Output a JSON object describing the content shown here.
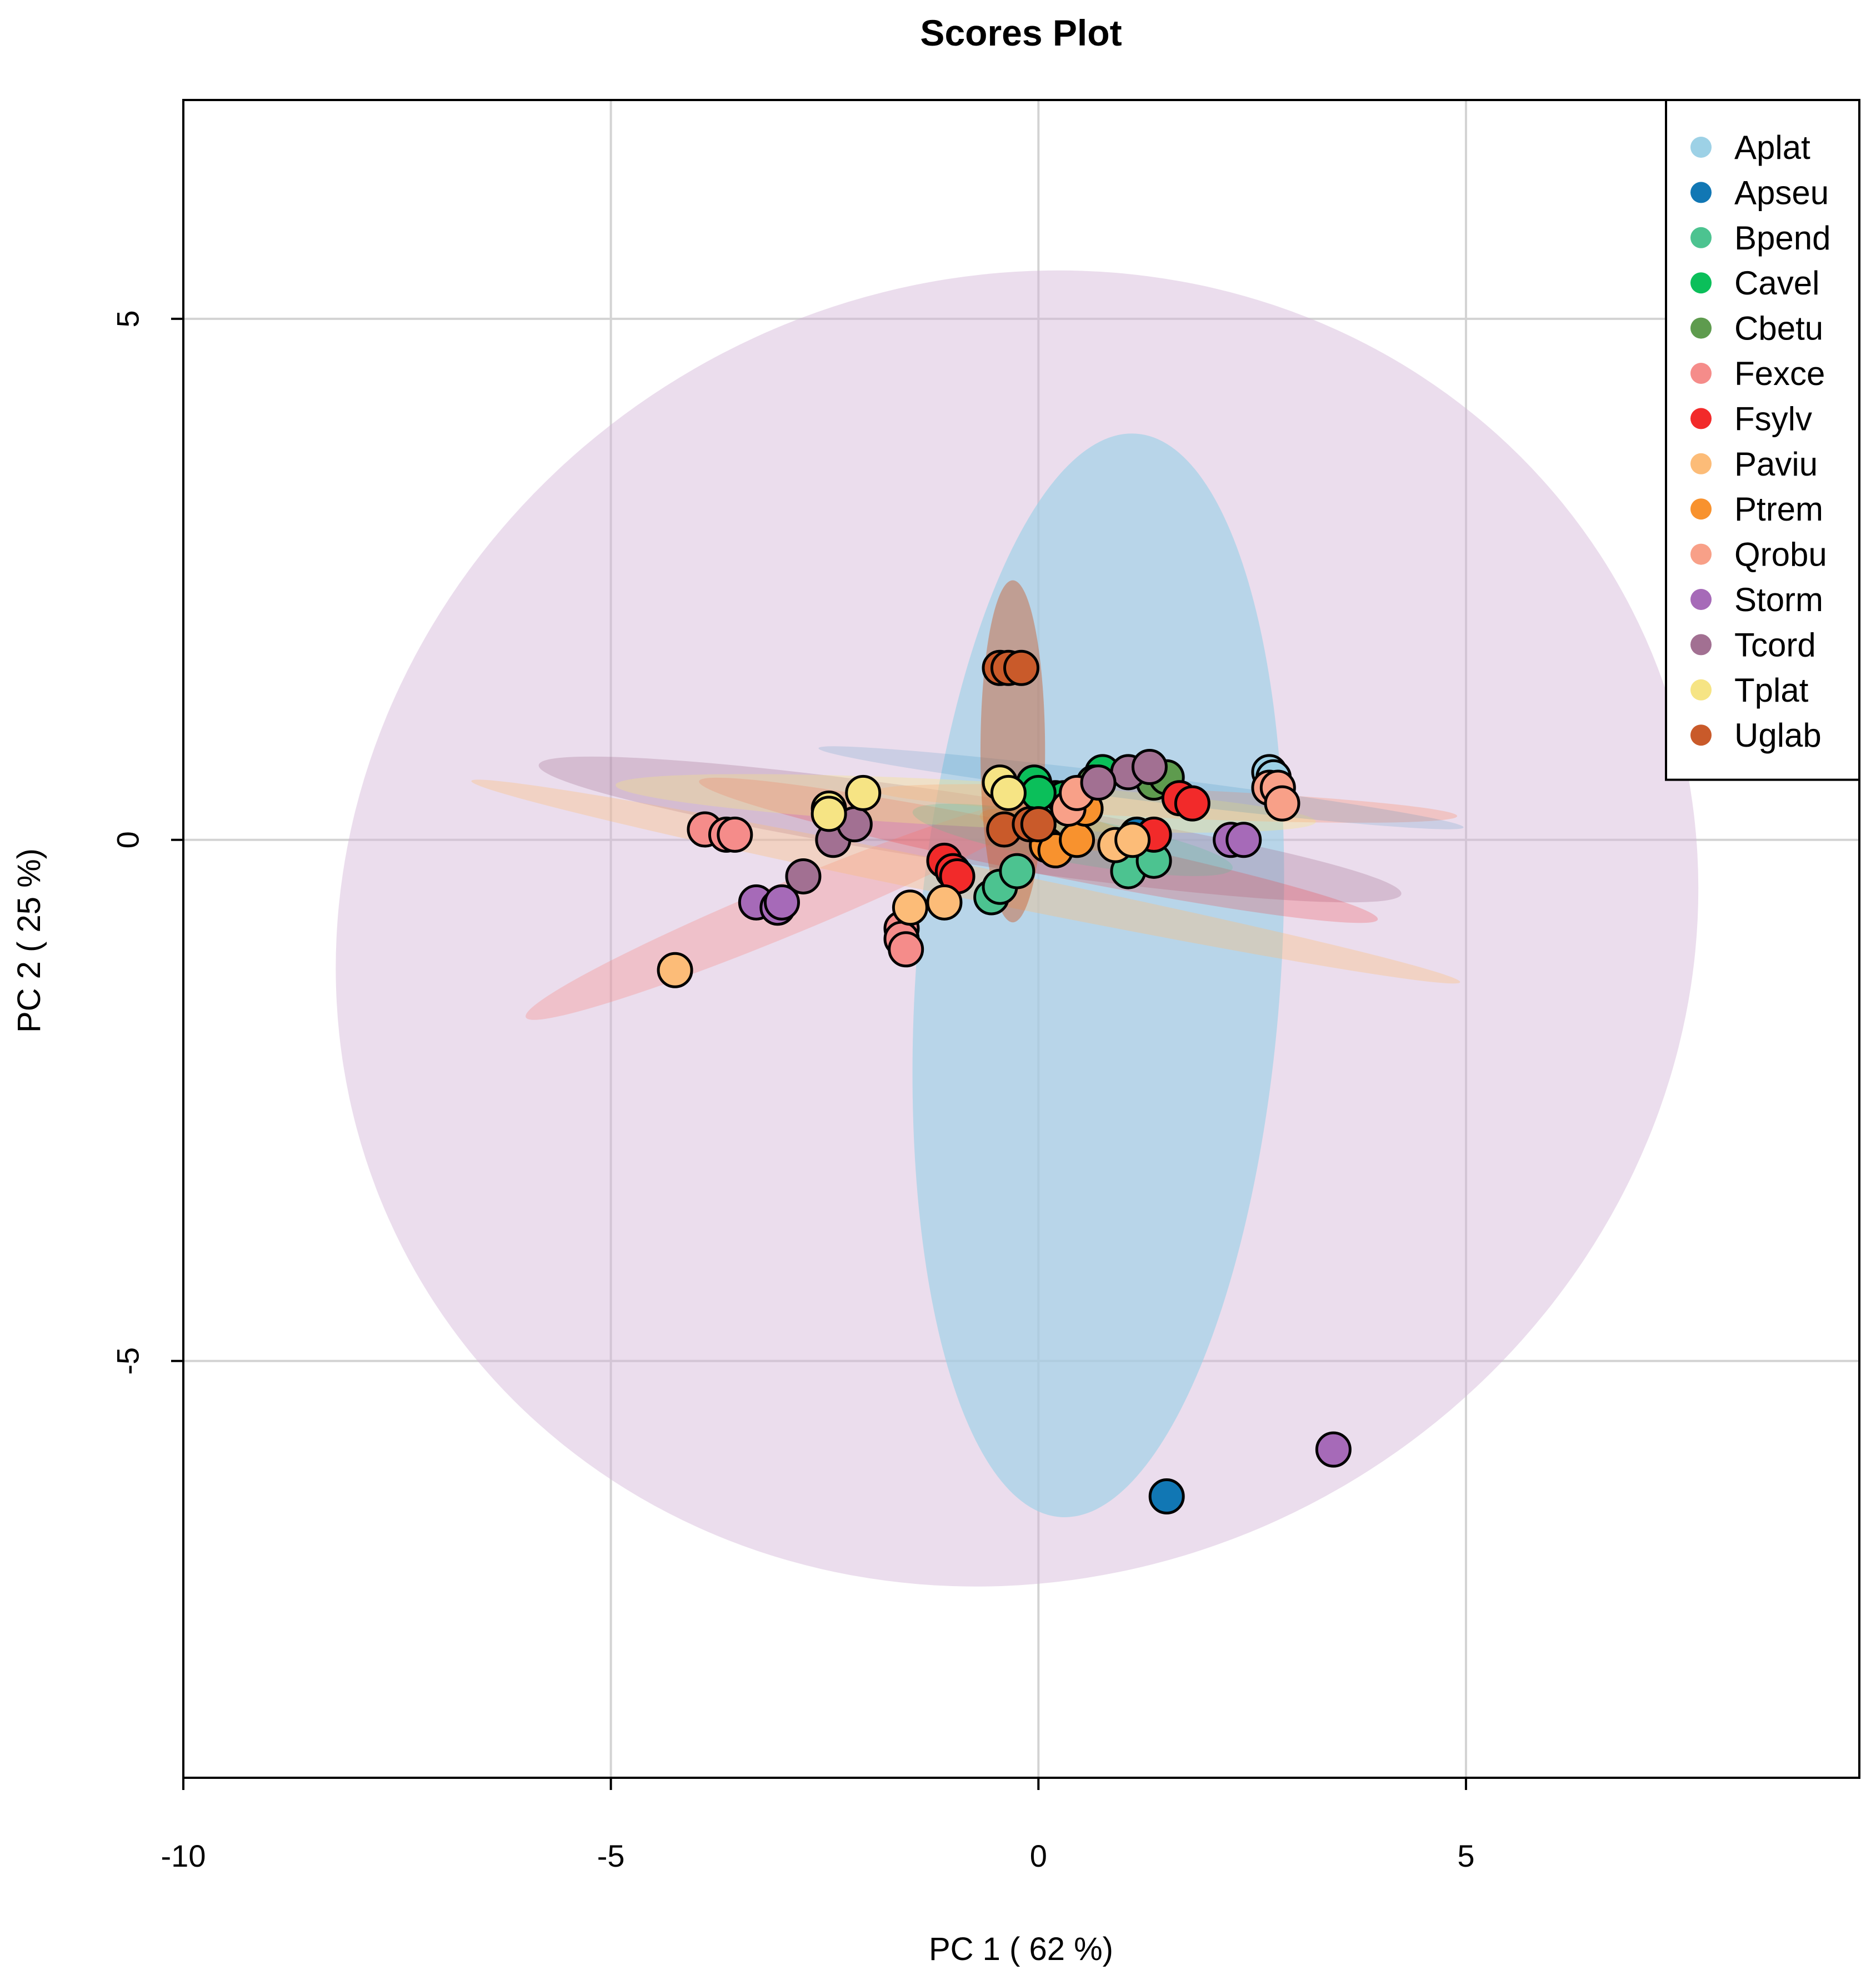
{
  "chart_data": {
    "type": "scatter",
    "title": "Scores Plot",
    "xlabel": "PC 1 ( 62 %)",
    "ylabel": "PC 2 ( 25 %)",
    "xlim": [
      -10,
      9.6
    ],
    "ylim": [
      -9,
      7.1
    ],
    "xticks": [
      -10,
      -5,
      0,
      5
    ],
    "yticks": [
      -5,
      0,
      5
    ],
    "grid": true,
    "legend_position": "top-right",
    "series": [
      {
        "name": "Aplat",
        "color": "#9DD1E6",
        "points": [
          [
            2.7,
            0.65
          ],
          [
            2.75,
            0.6
          ]
        ]
      },
      {
        "name": "Apseu",
        "color": "#1177B4",
        "points": [
          [
            1.5,
            -6.3
          ],
          [
            1.15,
            0.05
          ]
        ]
      },
      {
        "name": "Bpend",
        "color": "#4CC390",
        "points": [
          [
            -0.55,
            -0.55
          ],
          [
            -0.45,
            -0.45
          ],
          [
            -0.25,
            -0.3
          ],
          [
            0.2,
            0.4
          ],
          [
            1.05,
            -0.3
          ],
          [
            1.35,
            -0.2
          ],
          [
            0.55,
            0.3
          ]
        ]
      },
      {
        "name": "Cavel",
        "color": "#0BBF5A",
        "points": [
          [
            -0.05,
            0.55
          ],
          [
            0.3,
            0.4
          ],
          [
            0.75,
            0.65
          ],
          [
            0.0,
            0.45
          ]
        ]
      },
      {
        "name": "Cbetu",
        "color": "#5E9B4E",
        "points": [
          [
            1.35,
            0.55
          ],
          [
            1.5,
            0.6
          ],
          [
            0.65,
            0.55
          ]
        ]
      },
      {
        "name": "Fexce",
        "color": "#F58C8A",
        "points": [
          [
            -3.9,
            0.1
          ],
          [
            -3.65,
            0.05
          ],
          [
            -3.55,
            0.05
          ],
          [
            -1.6,
            -0.85
          ],
          [
            -1.6,
            -0.95
          ],
          [
            -1.55,
            -1.05
          ]
        ]
      },
      {
        "name": "Fsylv",
        "color": "#F22A2A",
        "points": [
          [
            -1.1,
            -0.2
          ],
          [
            -1.0,
            -0.3
          ],
          [
            -0.95,
            -0.35
          ],
          [
            1.35,
            0.05
          ],
          [
            1.65,
            0.4
          ],
          [
            1.8,
            0.35
          ]
        ]
      },
      {
        "name": "Paviu",
        "color": "#FCBC78",
        "points": [
          [
            -4.25,
            -1.25
          ],
          [
            -1.5,
            -0.65
          ],
          [
            -1.1,
            -0.6
          ],
          [
            0.9,
            -0.05
          ],
          [
            1.1,
            0.0
          ],
          [
            0.5,
            0.35
          ]
        ]
      },
      {
        "name": "Ptrem",
        "color": "#F8922E",
        "points": [
          [
            0.1,
            -0.05
          ],
          [
            0.2,
            -0.1
          ],
          [
            0.45,
            0.0
          ],
          [
            0.55,
            0.3
          ]
        ]
      },
      {
        "name": "Qrobu",
        "color": "#F8A088",
        "points": [
          [
            2.7,
            0.5
          ],
          [
            2.8,
            0.5
          ],
          [
            2.85,
            0.35
          ],
          [
            0.35,
            0.3
          ],
          [
            0.45,
            0.45
          ]
        ]
      },
      {
        "name": "Storm",
        "color": "#A66AB8",
        "points": [
          [
            -3.3,
            -0.6
          ],
          [
            -3.05,
            -0.65
          ],
          [
            -3.0,
            -0.6
          ],
          [
            2.25,
            0.0
          ],
          [
            2.4,
            0.0
          ],
          [
            3.45,
            -5.85
          ]
        ]
      },
      {
        "name": "Tcord",
        "color": "#A27092",
        "points": [
          [
            -2.75,
            -0.35
          ],
          [
            -2.4,
            0.0
          ],
          [
            -2.15,
            0.15
          ],
          [
            1.05,
            0.65
          ],
          [
            1.3,
            0.7
          ],
          [
            0.7,
            0.55
          ]
        ]
      },
      {
        "name": "Tplat",
        "color": "#F6E484",
        "points": [
          [
            -2.45,
            0.3
          ],
          [
            -2.45,
            0.25
          ],
          [
            -2.05,
            0.45
          ],
          [
            -0.45,
            0.55
          ],
          [
            -0.35,
            0.45
          ]
        ]
      },
      {
        "name": "Uglab",
        "color": "#C95A2A",
        "points": [
          [
            -0.45,
            1.65
          ],
          [
            -0.35,
            1.65
          ],
          [
            -0.2,
            1.65
          ],
          [
            -0.4,
            0.1
          ],
          [
            -0.1,
            0.15
          ],
          [
            0.0,
            0.15
          ]
        ]
      }
    ],
    "ellipses": [
      {
        "group": "Storm",
        "color": "#D3B3D8",
        "cx": -0.25,
        "cy": -0.85,
        "rx": 8.1,
        "ry": 6.2,
        "angle_deg": -30,
        "opacity": 0.45
      },
      {
        "group": "Aplat",
        "color": "#9DD1E6",
        "cx": 0.7,
        "cy": -1.3,
        "rx": 6.35,
        "ry": 1.75,
        "angle_deg": -86,
        "opacity": 0.65
      },
      {
        "group": "Tcord",
        "color": "#A27092",
        "cx": -0.8,
        "cy": 0.1,
        "rx": 5.1,
        "ry": 0.33,
        "angle_deg": 8.5,
        "opacity": 0.3
      },
      {
        "group": "Fexce",
        "color": "#F58C8A",
        "cx": -2.9,
        "cy": -0.65,
        "rx": 3.35,
        "ry": 0.25,
        "angle_deg": -22.5,
        "opacity": 0.35
      },
      {
        "group": "Fsylv",
        "color": "#F22A2A",
        "cx": -0.0,
        "cy": -0.1,
        "rx": 4.05,
        "ry": 0.22,
        "angle_deg": 11.5,
        "opacity": 0.22
      },
      {
        "group": "Paviu",
        "color": "#FCBC78",
        "cx": -0.85,
        "cy": -0.4,
        "rx": 5.9,
        "ry": 0.16,
        "angle_deg": 11.5,
        "opacity": 0.35
      },
      {
        "group": "Qrobu",
        "color": "#F8A088",
        "cx": 1.5,
        "cy": 0.35,
        "rx": 3.4,
        "ry": 0.14,
        "angle_deg": 2.5,
        "opacity": 0.4
      },
      {
        "group": "Tplat",
        "color": "#F6E484",
        "cx": -0.85,
        "cy": 0.35,
        "rx": 4.1,
        "ry": 0.22,
        "angle_deg": 3,
        "opacity": 0.35
      },
      {
        "group": "Bpend",
        "color": "#4CC390",
        "cx": 0.4,
        "cy": 0.0,
        "rx": 1.9,
        "ry": 0.22,
        "angle_deg": 10,
        "opacity": 0.22
      },
      {
        "group": "Ptrem",
        "color": "#F8922E",
        "cx": 0.25,
        "cy": 0.1,
        "rx": 0.95,
        "ry": 0.16,
        "angle_deg": 10,
        "opacity": 0.25
      },
      {
        "group": "Apseu",
        "color": "#1177B4",
        "cx": 1.2,
        "cy": 0.5,
        "rx": 3.8,
        "ry": 0.12,
        "angle_deg": 7,
        "opacity": 0.15
      },
      {
        "group": "Uglab",
        "color": "#C95A2A",
        "cx": -0.3,
        "cy": 0.85,
        "rx": 2.0,
        "ry": 0.31,
        "angle_deg": -90,
        "opacity": 0.45
      }
    ]
  }
}
